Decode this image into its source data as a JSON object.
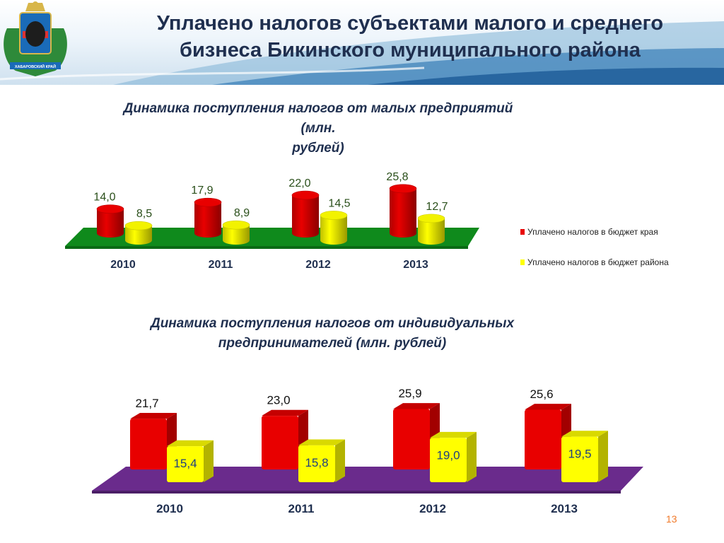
{
  "header": {
    "title_line1": "Уплачено налогов субъектами малого и среднего",
    "title_line2": "бизнеса Бикинского муниципального района",
    "emblem_label": "ХАБАРОВСКИЙ КРАЙ"
  },
  "colors": {
    "red": "#e80000",
    "yellow": "#ffff00",
    "green_floor": "#0f8a1c",
    "purple_floor": "#6a2b8c",
    "title": "#1f2f4f",
    "page_number": "#f07a2a"
  },
  "chart_data": [
    {
      "type": "bar",
      "title": "Динамика поступления налогов от малых предприятий (млн. рублей)",
      "title_line1": "Динамика поступления налогов от малых предприятий (млн.",
      "title_line2": "рублей)",
      "categories": [
        "2010",
        "2011",
        "2012",
        "2013"
      ],
      "series": [
        {
          "name": "Уплачено  налогов  в бюджет края",
          "values": [
            14.0,
            17.9,
            22.0,
            25.8
          ],
          "labels": [
            "14,0",
            "17,9",
            "22,0",
            "25,8"
          ]
        },
        {
          "name": "Уплачено  налогов  в бюджет района",
          "values": [
            8.5,
            8.9,
            14.5,
            12.7
          ],
          "labels": [
            "8,5",
            "8,9",
            "14,5",
            "12,7"
          ]
        }
      ],
      "legend_position": "right",
      "grid": false
    },
    {
      "type": "bar",
      "title": "Динамика поступления налогов от индивидуальных предпринимателей (млн. рублей)",
      "title_line1": "Динамика поступления налогов от индивидуальных",
      "title_line2": "предпринимателей (млн. рублей)",
      "categories": [
        "2010",
        "2011",
        "2012",
        "2013"
      ],
      "series": [
        {
          "values": [
            21.7,
            23.0,
            25.9,
            25.6
          ],
          "labels": [
            "21,7",
            "23,0",
            "25,9",
            "25,6"
          ]
        },
        {
          "values": [
            15.4,
            15.8,
            19.0,
            19.5
          ],
          "labels": [
            "15,4",
            "15,8",
            "19,0",
            "19,5"
          ]
        }
      ],
      "grid": false
    }
  ],
  "page_number": "13"
}
